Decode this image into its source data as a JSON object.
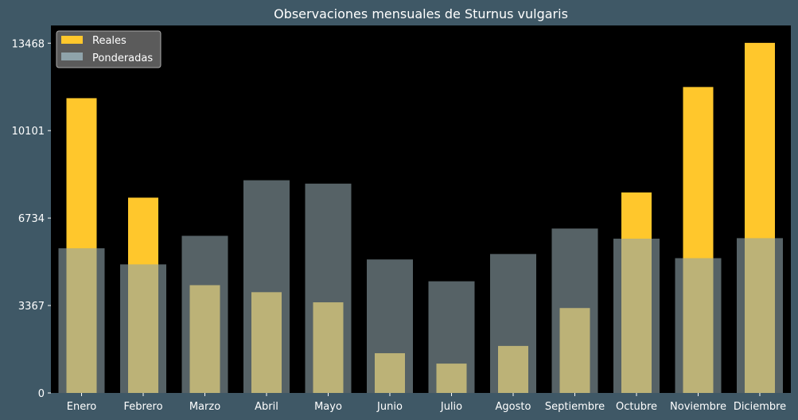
{
  "chart_data": {
    "type": "bar",
    "title": "Observaciones mensuales de Sturnus vulgaris",
    "xlabel": "",
    "ylabel": "",
    "categories": [
      "Enero",
      "Febrero",
      "Marzo",
      "Abril",
      "Mayo",
      "Junio",
      "Julio",
      "Agosto",
      "Septiembre",
      "Octubre",
      "Noviembre",
      "Diciembre"
    ],
    "series": [
      {
        "name": "Reales",
        "color": "#ffc72c",
        "values": [
          11350,
          7520,
          4150,
          3880,
          3490,
          1530,
          1130,
          1810,
          3270,
          7720,
          11780,
          13480
        ]
      },
      {
        "name": "Ponderadas",
        "color": "#8fa3aa",
        "values": [
          5570,
          4950,
          6050,
          8190,
          8060,
          5140,
          4300,
          5350,
          6330,
          5940,
          5190,
          5960
        ]
      }
    ],
    "yticks": [
      0,
      3367,
      6734,
      10101,
      13468
    ],
    "ylim": [
      0,
      14150
    ],
    "grid": false,
    "legend": "top-left",
    "plot_background": "#000000",
    "figure_background": "#3f5866"
  }
}
